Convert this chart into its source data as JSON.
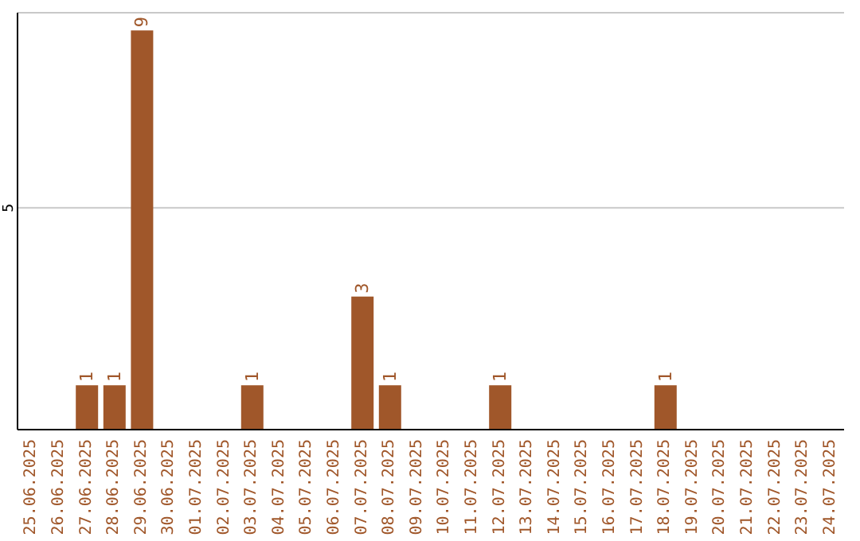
{
  "chart_data": {
    "type": "bar",
    "categories": [
      "25.06.2025",
      "26.06.2025",
      "27.06.2025",
      "28.06.2025",
      "29.06.2025",
      "30.06.2025",
      "01.07.2025",
      "02.07.2025",
      "03.07.2025",
      "04.07.2025",
      "05.07.2025",
      "06.07.2025",
      "07.07.2025",
      "08.07.2025",
      "09.07.2025",
      "10.07.2025",
      "11.07.2025",
      "12.07.2025",
      "13.07.2025",
      "14.07.2025",
      "15.07.2025",
      "16.07.2025",
      "17.07.2025",
      "18.07.2025",
      "19.07.2025",
      "20.07.2025",
      "21.07.2025",
      "22.07.2025",
      "23.07.2025",
      "24.07.2025"
    ],
    "values": [
      0,
      0,
      1,
      1,
      9,
      0,
      0,
      0,
      1,
      0,
      0,
      0,
      3,
      1,
      0,
      0,
      0,
      1,
      0,
      0,
      0,
      0,
      0,
      1,
      0,
      0,
      0,
      0,
      0,
      0
    ],
    "value_labels": [
      null,
      null,
      "1",
      "1",
      "9",
      null,
      null,
      null,
      "1",
      null,
      null,
      null,
      "3",
      "1",
      null,
      null,
      null,
      "1",
      null,
      null,
      null,
      null,
      null,
      "1",
      null,
      null,
      null,
      null,
      null,
      null
    ],
    "color": "#a0572a",
    "ylim": [
      0,
      9.4
    ],
    "yticks": [
      5
    ],
    "grid": "y",
    "legend": false
  }
}
